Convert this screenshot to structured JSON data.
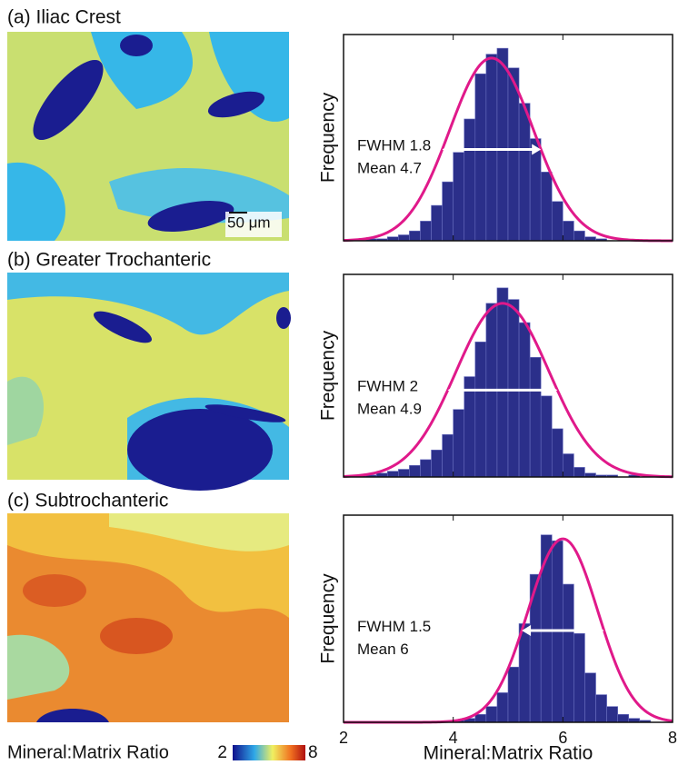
{
  "chart_data": [
    {
      "type": "histogram",
      "title": "(a) Iliac Crest",
      "ylabel": "Frequency",
      "color": "#2b2f8a",
      "bins": [
        2.0,
        2.2,
        2.4,
        2.6,
        2.8,
        3.0,
        3.2,
        3.4,
        3.6,
        3.8,
        4.0,
        4.2,
        4.4,
        4.6,
        4.8,
        5.0,
        5.2,
        5.4,
        5.6,
        5.8,
        6.0,
        6.2,
        6.4,
        6.6,
        6.8,
        7.0,
        7.2,
        7.4,
        7.6,
        7.8,
        8.0
      ],
      "values": [
        0,
        0,
        1,
        1,
        2,
        3,
        5,
        10,
        18,
        30,
        45,
        62,
        85,
        95,
        98,
        88,
        70,
        52,
        35,
        20,
        10,
        5,
        2,
        1,
        0,
        0,
        0,
        0,
        0,
        0
      ],
      "xlim": [
        2,
        8
      ],
      "xticks": [
        2,
        4,
        6,
        8
      ],
      "ylim": [
        0,
        105
      ],
      "fit": {
        "color": "#e0198a",
        "mean_label": "Mean",
        "mean": 4.7,
        "fwhm_label": "FWHM",
        "fwhm": 1.8,
        "peak": 93
      }
    },
    {
      "type": "histogram",
      "title": "(b) Greater Trochanteric",
      "ylabel": "Frequency",
      "color": "#2b2f8a",
      "bins": [
        2.0,
        2.2,
        2.4,
        2.6,
        2.8,
        3.0,
        3.2,
        3.4,
        3.6,
        3.8,
        4.0,
        4.2,
        4.4,
        4.6,
        4.8,
        5.0,
        5.2,
        5.4,
        5.6,
        5.8,
        6.0,
        6.2,
        6.4,
        6.6,
        6.8,
        7.0,
        7.2,
        7.4,
        7.6,
        7.8,
        8.0
      ],
      "values": [
        0,
        1,
        1,
        2,
        3,
        4,
        6,
        9,
        14,
        22,
        35,
        52,
        70,
        90,
        98,
        92,
        80,
        62,
        42,
        25,
        12,
        5,
        2,
        1,
        1,
        0,
        1,
        0,
        0,
        0
      ],
      "xlim": [
        2,
        8
      ],
      "xticks": [
        2,
        4,
        6,
        8
      ],
      "ylim": [
        0,
        105
      ],
      "fit": {
        "color": "#e0198a",
        "mean_label": "Mean",
        "mean": 4.9,
        "fwhm_label": "FWHM",
        "fwhm": 2.0,
        "peak": 90
      }
    },
    {
      "type": "histogram",
      "title": "(c) Subtrochanteric",
      "ylabel": "Frequency",
      "xlabel": "Mineral:Matrix Ratio",
      "color": "#2b2f8a",
      "bins": [
        2.0,
        2.2,
        2.4,
        2.6,
        2.8,
        3.0,
        3.2,
        3.4,
        3.6,
        3.8,
        4.0,
        4.2,
        4.4,
        4.6,
        4.8,
        5.0,
        5.2,
        5.4,
        5.6,
        5.8,
        6.0,
        6.2,
        6.4,
        6.6,
        6.8,
        7.0,
        7.2,
        7.4,
        7.6,
        7.8,
        8.0
      ],
      "values": [
        0,
        0,
        0,
        0,
        0,
        0,
        0,
        0,
        0,
        0,
        1,
        2,
        4,
        8,
        15,
        28,
        50,
        75,
        95,
        92,
        70,
        45,
        25,
        14,
        8,
        4,
        2,
        1,
        0,
        0
      ],
      "xlim": [
        2,
        8
      ],
      "xticks": [
        2,
        4,
        6,
        8
      ],
      "ylim": [
        0,
        105
      ],
      "fit": {
        "color": "#e0198a",
        "mean_label": "Mean",
        "mean": 6.0,
        "fwhm_label": "FWHM",
        "fwhm": 1.5,
        "peak": 93
      }
    }
  ],
  "colorbar": {
    "label": "Mineral:Matrix Ratio",
    "ticks": [
      2,
      8
    ]
  },
  "scale_bar": "50 μm"
}
